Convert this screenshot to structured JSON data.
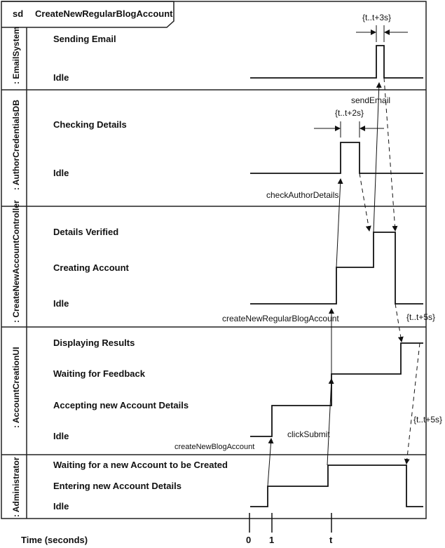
{
  "frame": {
    "keyword": "sd",
    "title": "CreateNewRegularBlogAccount"
  },
  "lifelines": [
    {
      "name": ": EmailSystem",
      "states": [
        "Sending Email",
        "Idle"
      ]
    },
    {
      "name": ": AuthorCredentialsDB",
      "states": [
        "Checking Details",
        "Idle"
      ]
    },
    {
      "name": ": CreateNewAccountController",
      "states": [
        "Details Verified",
        "Creating Account",
        "Idle"
      ]
    },
    {
      "name": ": AccountCreationUI",
      "states": [
        "Displaying Results",
        "Waiting for Feedback",
        "Accepting new Account Details",
        "Idle"
      ]
    },
    {
      "name": ": Administrator",
      "states": [
        "Waiting for a new Account to be Created",
        "Entering new Account Details",
        "Idle"
      ]
    }
  ],
  "messages": {
    "send_email": "sendEmail",
    "check_author_details": "checkAuthorDetails",
    "create_new_regular_blog_account": "createNewRegularBlogAccount",
    "create_new_blog_account": "createNewBlogAccount",
    "click_submit": "clickSubmit"
  },
  "constraints": {
    "email_duration": "{t..t+3s}",
    "db_duration": "{t..t+2s}",
    "controller_to_ui": "{t..t+5s}",
    "ui_to_admin": "{t..t+5s}"
  },
  "time_axis": {
    "label": "Time (seconds)",
    "ticks": [
      "0",
      "1",
      "t"
    ]
  }
}
